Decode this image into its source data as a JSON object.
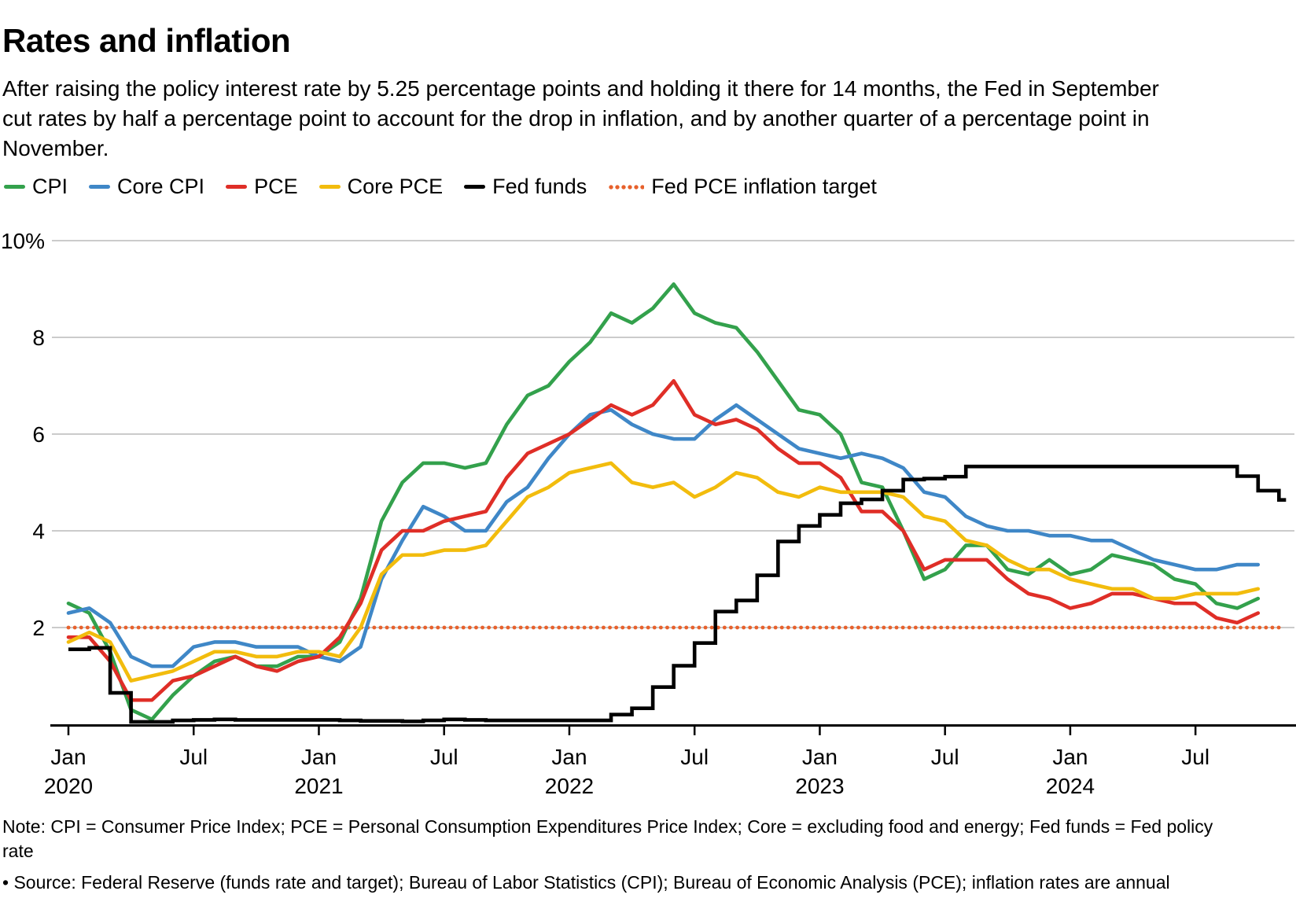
{
  "title": "Rates and inflation",
  "subtitle": "After raising the policy interest rate by 5.25 percentage points and holding it there for 14 months, the Fed in September cut rates by half a percentage point to account for the drop in inflation, and by another quarter of a percentage point in November.",
  "legend": [
    {
      "label": "CPI",
      "color": "#33A14C",
      "style": "line"
    },
    {
      "label": "Core CPI",
      "color": "#3F87C7",
      "style": "line"
    },
    {
      "label": "PCE",
      "color": "#DF2E27",
      "style": "line"
    },
    {
      "label": "Core PCE",
      "color": "#F2BC0D",
      "style": "line"
    },
    {
      "label": "Fed funds",
      "color": "#000000",
      "style": "line"
    },
    {
      "label": "Fed PCE inflation target",
      "color": "#E7612C",
      "style": "dotted"
    }
  ],
  "notes": {
    "note": "Note: CPI = Consumer Price Index; PCE = Personal Consumption Expenditures Price Index; Core = excluding food and energy; Fed funds = Fed policy rate",
    "source": "• Source: Federal Reserve (funds rate and target); Bureau of Labor Statistics (CPI); Bureau of Economic Analysis (PCE); inflation rates are annual"
  },
  "chart_data": {
    "type": "line",
    "title": "Rates and inflation",
    "x_frequency": "monthly",
    "x_start": "Jan 2020",
    "x_end_inflation_series": "Oct 2024",
    "x_end_fed_funds": "Nov 2024",
    "ylim": [
      0,
      10
    ],
    "grid": true,
    "grid_color": "#CBCBCB",
    "legend_position": "top",
    "y_ticks": [
      {
        "value": 10,
        "label": "10%"
      },
      {
        "value": 8,
        "label": "8"
      },
      {
        "value": 6,
        "label": "6"
      },
      {
        "value": 4,
        "label": "4"
      },
      {
        "value": 2,
        "label": "2"
      }
    ],
    "x_ticks": [
      {
        "month_index": 0,
        "label": "Jan",
        "year": "2020"
      },
      {
        "month_index": 6,
        "label": "Jul",
        "year": ""
      },
      {
        "month_index": 12,
        "label": "Jan",
        "year": "2021"
      },
      {
        "month_index": 18,
        "label": "Jul",
        "year": ""
      },
      {
        "month_index": 24,
        "label": "Jan",
        "year": "2022"
      },
      {
        "month_index": 30,
        "label": "Jul",
        "year": ""
      },
      {
        "month_index": 36,
        "label": "Jan",
        "year": "2023"
      },
      {
        "month_index": 42,
        "label": "Jul",
        "year": ""
      },
      {
        "month_index": 48,
        "label": "Jan",
        "year": "2024"
      },
      {
        "month_index": 54,
        "label": "Jul",
        "year": ""
      }
    ],
    "target_line": {
      "name": "Fed PCE inflation target",
      "value": 2,
      "color": "#E7612C",
      "style": "dotted"
    },
    "series": [
      {
        "name": "CPI",
        "color": "#33A14C",
        "style": "line",
        "values": [
          2.5,
          2.3,
          1.5,
          0.3,
          0.1,
          0.6,
          1.0,
          1.3,
          1.4,
          1.2,
          1.2,
          1.4,
          1.4,
          1.7,
          2.6,
          4.2,
          5.0,
          5.4,
          5.4,
          5.3,
          5.4,
          6.2,
          6.8,
          7.0,
          7.5,
          7.9,
          8.5,
          8.3,
          8.6,
          9.1,
          8.5,
          8.3,
          8.2,
          7.7,
          7.1,
          6.5,
          6.4,
          6.0,
          5.0,
          4.9,
          4.0,
          3.0,
          3.2,
          3.7,
          3.7,
          3.2,
          3.1,
          3.4,
          3.1,
          3.2,
          3.5,
          3.4,
          3.3,
          3.0,
          2.9,
          2.5,
          2.4,
          2.6
        ]
      },
      {
        "name": "Core CPI",
        "color": "#3F87C7",
        "style": "line",
        "values": [
          2.3,
          2.4,
          2.1,
          1.4,
          1.2,
          1.2,
          1.6,
          1.7,
          1.7,
          1.6,
          1.6,
          1.6,
          1.4,
          1.3,
          1.6,
          3.0,
          3.8,
          4.5,
          4.3,
          4.0,
          4.0,
          4.6,
          4.9,
          5.5,
          6.0,
          6.4,
          6.5,
          6.2,
          6.0,
          5.9,
          5.9,
          6.3,
          6.6,
          6.3,
          6.0,
          5.7,
          5.6,
          5.5,
          5.6,
          5.5,
          5.3,
          4.8,
          4.7,
          4.3,
          4.1,
          4.0,
          4.0,
          3.9,
          3.9,
          3.8,
          3.8,
          3.6,
          3.4,
          3.3,
          3.2,
          3.2,
          3.3,
          3.3
        ]
      },
      {
        "name": "PCE",
        "color": "#DF2E27",
        "style": "line",
        "values": [
          1.8,
          1.8,
          1.3,
          0.5,
          0.5,
          0.9,
          1.0,
          1.2,
          1.4,
          1.2,
          1.1,
          1.3,
          1.4,
          1.8,
          2.5,
          3.6,
          4.0,
          4.0,
          4.2,
          4.3,
          4.4,
          5.1,
          5.6,
          5.8,
          6.0,
          6.3,
          6.6,
          6.4,
          6.6,
          7.1,
          6.4,
          6.2,
          6.3,
          6.1,
          5.7,
          5.4,
          5.4,
          5.1,
          4.4,
          4.4,
          4.0,
          3.2,
          3.4,
          3.4,
          3.4,
          3.0,
          2.7,
          2.6,
          2.4,
          2.5,
          2.7,
          2.7,
          2.6,
          2.5,
          2.5,
          2.2,
          2.1,
          2.3
        ]
      },
      {
        "name": "Core PCE",
        "color": "#F2BC0D",
        "style": "line",
        "values": [
          1.7,
          1.9,
          1.7,
          0.9,
          1.0,
          1.1,
          1.3,
          1.5,
          1.5,
          1.4,
          1.4,
          1.5,
          1.5,
          1.4,
          2.0,
          3.1,
          3.5,
          3.5,
          3.6,
          3.6,
          3.7,
          4.2,
          4.7,
          4.9,
          5.2,
          5.3,
          5.4,
          5.0,
          4.9,
          5.0,
          4.7,
          4.9,
          5.2,
          5.1,
          4.8,
          4.7,
          4.9,
          4.8,
          4.8,
          4.8,
          4.7,
          4.3,
          4.2,
          3.8,
          3.7,
          3.4,
          3.2,
          3.2,
          3.0,
          2.9,
          2.8,
          2.8,
          2.6,
          2.6,
          2.7,
          2.7,
          2.7,
          2.8
        ]
      },
      {
        "name": "Fed funds",
        "color": "#000000",
        "style": "step",
        "values": [
          1.55,
          1.58,
          0.65,
          0.05,
          0.05,
          0.08,
          0.09,
          0.1,
          0.09,
          0.09,
          0.09,
          0.09,
          0.09,
          0.08,
          0.07,
          0.07,
          0.06,
          0.08,
          0.1,
          0.09,
          0.08,
          0.08,
          0.08,
          0.08,
          0.08,
          0.08,
          0.2,
          0.33,
          0.77,
          1.21,
          1.68,
          2.33,
          2.56,
          3.08,
          3.78,
          4.1,
          4.33,
          4.57,
          4.65,
          4.83,
          5.06,
          5.08,
          5.12,
          5.33,
          5.33,
          5.33,
          5.33,
          5.33,
          5.33,
          5.33,
          5.33,
          5.33,
          5.33,
          5.33,
          5.33,
          5.33,
          5.13,
          4.83,
          4.64
        ]
      }
    ]
  }
}
